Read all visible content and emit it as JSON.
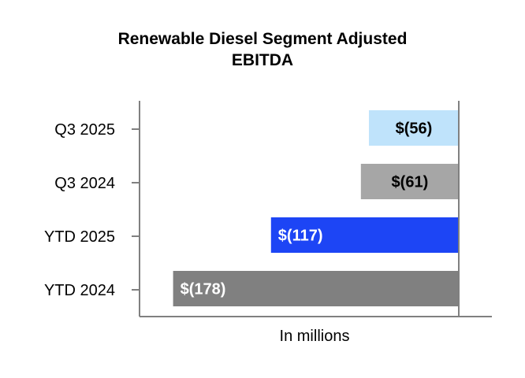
{
  "chart_data": {
    "type": "bar",
    "orientation": "horizontal",
    "title_lines": [
      "Renewable Diesel Segment Adjusted",
      "EBITDA"
    ],
    "xlabel": "In millions",
    "ylabel": "",
    "categories": [
      "Q3 2025",
      "Q3 2024",
      "YTD 2025",
      "YTD 2024"
    ],
    "values": [
      -56,
      -61,
      -117,
      -178
    ],
    "data_labels": [
      "$(56)",
      "$(61)",
      "$(117)",
      "$(178)"
    ],
    "xlim": [
      -190,
      0
    ],
    "grid": false,
    "legend": "none",
    "colors": [
      "#bfe3fb",
      "#a6a6a6",
      "#1d45f5",
      "#808080"
    ],
    "label_colors": [
      "#000000",
      "#000000",
      "#ffffff",
      "#ffffff"
    ],
    "axis_color": "#808080"
  }
}
